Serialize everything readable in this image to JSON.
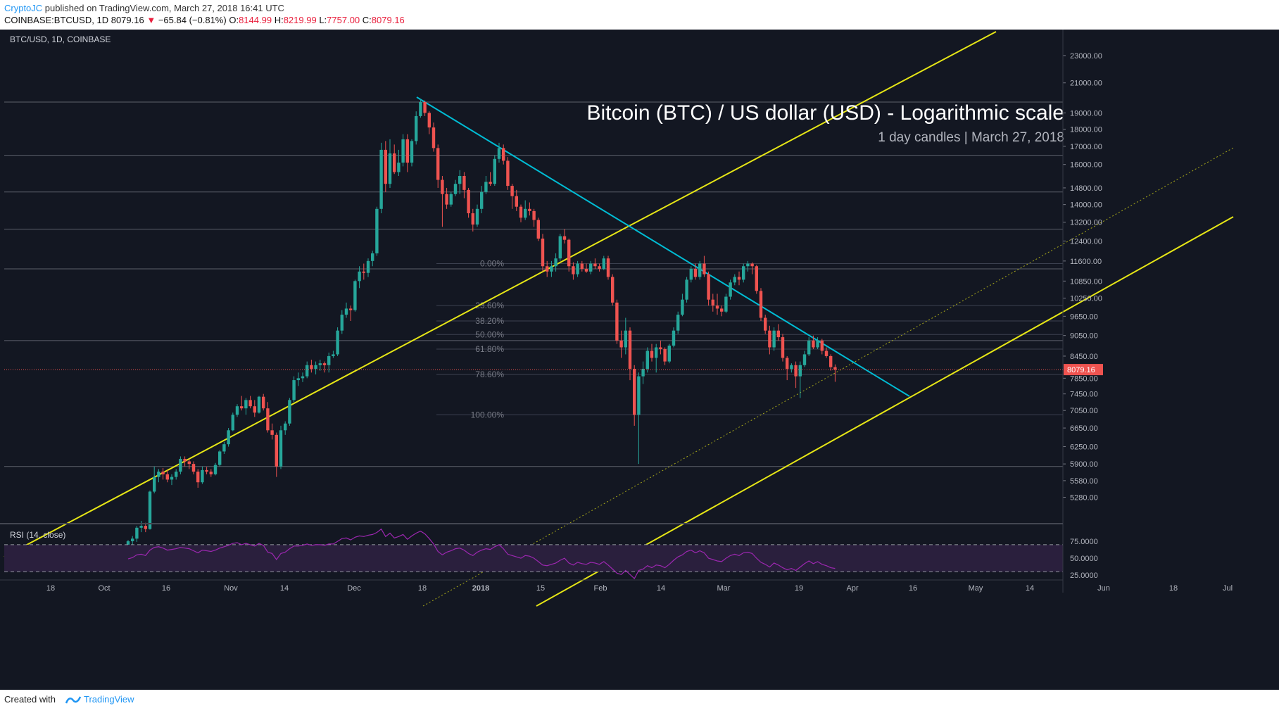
{
  "header": {
    "author": "CryptoJC",
    "published_text": " published on TradingView.com, March 27, 2018 16:41 UTC",
    "symbol": "COINBASE:BTCUSD, 1D",
    "last_price": "8079.16",
    "change_arrow": "▼",
    "change": "−65.84 (−0.81%)",
    "open_label": "O:",
    "open": "8144.99",
    "high_label": "H:",
    "high": "8219.99",
    "low_label": "L:",
    "low": "7757.00",
    "close_label": "C:",
    "close": "8079.16"
  },
  "footer": {
    "created_with": "Created with",
    "brand": "TradingView"
  },
  "colors": {
    "background": "#131722",
    "bull": "#26a69a",
    "bear": "#ef5350",
    "channel": "#e6e616",
    "trendline": "#00bcd4",
    "rsi": "#9c27b0",
    "price_tag": "#ef5350",
    "fib": "#787b86"
  },
  "chart_data": {
    "type": "candlestick",
    "legend": "BTC/USD, 1D, COINBASE",
    "title": "Bitcoin (BTC) / US dollar (USD) - Logarithmic scale",
    "subtitle": "1 day candles | March 27, 2018",
    "yscale": "log",
    "ylim": [
      4950,
      24500
    ],
    "y_ticks": [
      "23000.00",
      "21000.00",
      "19000.00",
      "18000.00",
      "17000.00",
      "16000.00",
      "14800.00",
      "14000.00",
      "13200.00",
      "12400.00",
      "11600.00",
      "10850.00",
      "10250.00",
      "9650.00",
      "9050.00",
      "8450.00",
      "7850.00",
      "7450.00",
      "7050.00",
      "6650.00",
      "6250.00",
      "5900.00",
      "5580.00",
      "5280.00"
    ],
    "x_ticks": [
      "18",
      "Oct",
      "16",
      "Nov",
      "14",
      "Dec",
      "18",
      "2018",
      "15",
      "Feb",
      "14",
      "Mar",
      "19",
      "Apr",
      "16",
      "May",
      "14",
      "Jun",
      "18",
      "Jul"
    ],
    "current_price": "8079.16",
    "horizontal_levels": [
      19700,
      16500,
      14600,
      12900,
      11300,
      8900,
      5850
    ],
    "fib_levels": [
      {
        "label": "0.00%",
        "price": 11500
      },
      {
        "label": "23.60%",
        "price": 10000
      },
      {
        "label": "38.20%",
        "price": 9500
      },
      {
        "label": "50.00%",
        "price": 9080
      },
      {
        "label": "61.80%",
        "price": 8650
      },
      {
        "label": "78.60%",
        "price": 7950
      },
      {
        "label": "100.00%",
        "price": 6950
      }
    ],
    "candles_note": "daily OHLC, 2017-10-07 .. 2018-03-27",
    "candles": [
      [
        4400,
        4580,
        4380,
        4560
      ],
      [
        4560,
        4640,
        4500,
        4600
      ],
      [
        4600,
        4800,
        4550,
        4770
      ],
      [
        4770,
        4880,
        4700,
        4800
      ],
      [
        4800,
        4850,
        4700,
        4750
      ],
      [
        4750,
        5400,
        4740,
        5380
      ],
      [
        5380,
        5850,
        5350,
        5650
      ],
      [
        5650,
        5800,
        5550,
        5750
      ],
      [
        5750,
        5820,
        5600,
        5700
      ],
      [
        5700,
        5780,
        5550,
        5600
      ],
      [
        5600,
        5700,
        5500,
        5650
      ],
      [
        5650,
        5800,
        5600,
        5750
      ],
      [
        5750,
        6050,
        5700,
        6000
      ],
      [
        6000,
        6050,
        5850,
        5950
      ],
      [
        5950,
        6000,
        5800,
        5900
      ],
      [
        5900,
        5950,
        5700,
        5750
      ],
      [
        5750,
        5800,
        5450,
        5550
      ],
      [
        5550,
        5850,
        5520,
        5780
      ],
      [
        5780,
        5840,
        5700,
        5750
      ],
      [
        5750,
        5800,
        5650,
        5700
      ],
      [
        5700,
        5920,
        5680,
        5880
      ],
      [
        5880,
        6180,
        5850,
        6150
      ],
      [
        6150,
        6350,
        6100,
        6300
      ],
      [
        6300,
        6650,
        6250,
        6600
      ],
      [
        6600,
        7000,
        6580,
        6950
      ],
      [
        6950,
        7200,
        6900,
        7150
      ],
      [
        7150,
        7400,
        7050,
        7100
      ],
      [
        7100,
        7350,
        6950,
        7300
      ],
      [
        7300,
        7400,
        7100,
        7150
      ],
      [
        7150,
        7300,
        6900,
        7000
      ],
      [
        7000,
        7400,
        6980,
        7380
      ],
      [
        7380,
        7450,
        7050,
        7100
      ],
      [
        7100,
        7250,
        6550,
        6600
      ],
      [
        6600,
        6750,
        6400,
        6500
      ],
      [
        6500,
        6550,
        5650,
        5850
      ],
      [
        5850,
        6700,
        5800,
        6600
      ],
      [
        6600,
        6800,
        6500,
        6750
      ],
      [
        6750,
        7350,
        6700,
        7300
      ],
      [
        7300,
        7900,
        7250,
        7800
      ],
      [
        7800,
        8000,
        7650,
        7850
      ],
      [
        7850,
        8000,
        7750,
        7900
      ],
      [
        7900,
        8300,
        7850,
        8200
      ],
      [
        8200,
        8350,
        8000,
        8100
      ],
      [
        8100,
        8300,
        7950,
        8200
      ],
      [
        8200,
        8350,
        8050,
        8250
      ],
      [
        8250,
        8300,
        8000,
        8200
      ],
      [
        8200,
        8550,
        8000,
        8450
      ],
      [
        8450,
        8600,
        8400,
        8500
      ],
      [
        8500,
        9300,
        8450,
        9200
      ],
      [
        9200,
        9850,
        9100,
        9700
      ],
      [
        9700,
        10100,
        9600,
        9900
      ],
      [
        9900,
        10000,
        9500,
        9850
      ],
      [
        9850,
        10900,
        9800,
        10850
      ],
      [
        10850,
        11400,
        10600,
        11200
      ],
      [
        11200,
        11500,
        10900,
        11150
      ],
      [
        11150,
        11700,
        11000,
        11600
      ],
      [
        11600,
        12000,
        11400,
        11900
      ],
      [
        11900,
        13900,
        11800,
        13800
      ],
      [
        13800,
        17200,
        13600,
        16800
      ],
      [
        16800,
        17300,
        14600,
        15000
      ],
      [
        15000,
        17400,
        14800,
        16600
      ],
      [
        16600,
        17100,
        15500,
        15600
      ],
      [
        15600,
        16800,
        15400,
        16100
      ],
      [
        16100,
        17700,
        15900,
        17400
      ],
      [
        17400,
        17700,
        15600,
        16100
      ],
      [
        16100,
        17400,
        15900,
        17300
      ],
      [
        17300,
        19100,
        17100,
        18800
      ],
      [
        18800,
        19900,
        18700,
        19700
      ],
      [
        19700,
        19800,
        18800,
        19000
      ],
      [
        19000,
        19100,
        17700,
        18100
      ],
      [
        18100,
        18400,
        16700,
        16900
      ],
      [
        16900,
        17100,
        14800,
        15200
      ],
      [
        15200,
        15400,
        13000,
        14500
      ],
      [
        14500,
        14800,
        13800,
        14000
      ],
      [
        14000,
        14600,
        13900,
        14500
      ],
      [
        14500,
        15200,
        14400,
        15000
      ],
      [
        15000,
        15700,
        14500,
        15400
      ],
      [
        15400,
        15600,
        14300,
        14700
      ],
      [
        14700,
        14800,
        13400,
        13600
      ],
      [
        13600,
        13800,
        12800,
        13100
      ],
      [
        13100,
        14000,
        13000,
        13800
      ],
      [
        13800,
        14900,
        13600,
        14600
      ],
      [
        14600,
        15400,
        14500,
        15100
      ],
      [
        15100,
        15600,
        14900,
        15000
      ],
      [
        15000,
        16500,
        14900,
        16300
      ],
      [
        16300,
        17200,
        16100,
        16900
      ],
      [
        16900,
        17100,
        16000,
        16200
      ],
      [
        16200,
        16400,
        14700,
        14900
      ],
      [
        14900,
        15000,
        13800,
        14400
      ],
      [
        14400,
        14700,
        13700,
        13900
      ],
      [
        13900,
        14000,
        13200,
        13400
      ],
      [
        13400,
        14200,
        13300,
        13800
      ],
      [
        13800,
        14100,
        13500,
        13700
      ],
      [
        13700,
        13800,
        13000,
        13300
      ],
      [
        13300,
        13400,
        12400,
        12500
      ],
      [
        12500,
        12700,
        11200,
        11400
      ],
      [
        11400,
        11600,
        11000,
        11200
      ],
      [
        11200,
        11600,
        11000,
        11400
      ],
      [
        11400,
        11900,
        11200,
        11700
      ],
      [
        11700,
        12700,
        11600,
        12600
      ],
      [
        12600,
        12900,
        12300,
        12450
      ],
      [
        12450,
        12500,
        11200,
        11400
      ],
      [
        11400,
        11550,
        10900,
        11100
      ],
      [
        11100,
        11600,
        11000,
        11500
      ],
      [
        11500,
        11600,
        11200,
        11300
      ],
      [
        11300,
        11500,
        11150,
        11200
      ],
      [
        11200,
        11600,
        11100,
        11500
      ],
      [
        11500,
        11700,
        11300,
        11400
      ],
      [
        11400,
        11500,
        11200,
        11300
      ],
      [
        11300,
        11800,
        11250,
        11700
      ],
      [
        11700,
        11800,
        10900,
        11000
      ],
      [
        11000,
        11100,
        10000,
        10100
      ],
      [
        10100,
        10200,
        8800,
        8900
      ],
      [
        8900,
        9200,
        8400,
        8700
      ],
      [
        8700,
        9600,
        8500,
        9200
      ],
      [
        9200,
        9300,
        7800,
        8100
      ],
      [
        8100,
        8200,
        6700,
        6950
      ],
      [
        6950,
        8000,
        5900,
        7900
      ],
      [
        7900,
        8300,
        7700,
        8100
      ],
      [
        8100,
        8700,
        8000,
        8600
      ],
      [
        8600,
        8800,
        8300,
        8400
      ],
      [
        8400,
        8800,
        8000,
        8700
      ],
      [
        8700,
        8900,
        8500,
        8650
      ],
      [
        8650,
        8700,
        8200,
        8300
      ],
      [
        8300,
        8800,
        8250,
        8750
      ],
      [
        8750,
        9300,
        8700,
        9200
      ],
      [
        9200,
        9800,
        9100,
        9700
      ],
      [
        9700,
        10400,
        9650,
        10200
      ],
      [
        10200,
        11000,
        10100,
        10900
      ],
      [
        10900,
        11400,
        10800,
        11300
      ],
      [
        11300,
        11500,
        10900,
        11000
      ],
      [
        11000,
        11600,
        10900,
        11500
      ],
      [
        11500,
        11800,
        11000,
        11100
      ],
      [
        11100,
        11200,
        10000,
        10200
      ],
      [
        10200,
        10400,
        9800,
        10000
      ],
      [
        10000,
        10400,
        9700,
        9900
      ],
      [
        9900,
        10000,
        9650,
        9800
      ],
      [
        9800,
        10400,
        9750,
        10300
      ],
      [
        10300,
        10900,
        10200,
        10800
      ],
      [
        10800,
        11100,
        10700,
        11000
      ],
      [
        11000,
        11200,
        10700,
        10900
      ],
      [
        10900,
        11500,
        10800,
        11400
      ],
      [
        11400,
        11600,
        11200,
        11500
      ],
      [
        11500,
        11550,
        11100,
        11400
      ],
      [
        11400,
        11450,
        10400,
        10500
      ],
      [
        10500,
        10600,
        9500,
        9600
      ],
      [
        9600,
        9700,
        9100,
        9200
      ],
      [
        9200,
        9350,
        8500,
        8700
      ],
      [
        8700,
        9300,
        8600,
        9200
      ],
      [
        9200,
        9400,
        8900,
        9000
      ],
      [
        9000,
        9100,
        8300,
        8400
      ],
      [
        8400,
        8450,
        7800,
        8100
      ],
      [
        8100,
        8250,
        8000,
        8200
      ],
      [
        8200,
        8300,
        7600,
        7900
      ],
      [
        7900,
        8300,
        7350,
        8200
      ],
      [
        8200,
        8600,
        8150,
        8500
      ],
      [
        8500,
        9000,
        8450,
        8900
      ],
      [
        8900,
        9050,
        8650,
        8700
      ],
      [
        8700,
        9000,
        8650,
        8900
      ],
      [
        8900,
        8950,
        8500,
        8600
      ],
      [
        8600,
        8700,
        8400,
        8450
      ],
      [
        8450,
        8500,
        8050,
        8145
      ],
      [
        8145,
        8220,
        7757,
        8079
      ]
    ],
    "rsi": {
      "label": "RSI (14, close)",
      "ylim": [
        20,
        100
      ],
      "y_ticks": [
        "75.0000",
        "50.0000",
        "25.0000"
      ],
      "upper_band": 70,
      "lower_band": 30,
      "values": [
        49,
        51,
        55,
        56,
        54,
        62,
        66,
        67,
        65,
        62,
        63,
        64,
        66,
        65,
        64,
        61,
        58,
        62,
        61,
        60,
        62,
        65,
        67,
        69,
        72,
        73,
        70,
        72,
        70,
        68,
        72,
        69,
        59,
        57,
        48,
        57,
        59,
        64,
        68,
        68,
        69,
        71,
        69,
        70,
        70,
        69,
        71,
        71,
        75,
        79,
        80,
        77,
        81,
        83,
        82,
        84,
        85,
        88,
        93,
        82,
        87,
        80,
        82,
        85,
        78,
        83,
        87,
        90,
        86,
        79,
        71,
        60,
        55,
        59,
        61,
        64,
        65,
        62,
        57,
        54,
        59,
        62,
        64,
        63,
        67,
        70,
        64,
        56,
        54,
        52,
        50,
        54,
        53,
        50,
        45,
        40,
        39,
        41,
        43,
        47,
        50,
        43,
        40,
        44,
        42,
        41,
        44,
        43,
        41,
        45,
        40,
        34,
        28,
        26,
        32,
        26,
        20,
        32,
        34,
        39,
        36,
        40,
        39,
        36,
        41,
        47,
        52,
        55,
        60,
        62,
        58,
        61,
        58,
        50,
        48,
        46,
        45,
        50,
        54,
        56,
        54,
        58,
        59,
        57,
        50,
        44,
        41,
        37,
        43,
        40,
        36,
        33,
        35,
        32,
        37,
        42,
        46,
        42,
        45,
        41,
        39,
        36,
        35
      ]
    }
  }
}
